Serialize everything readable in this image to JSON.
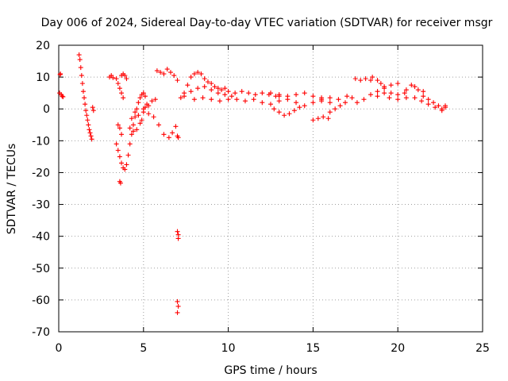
{
  "chart_data": {
    "type": "scatter",
    "title": "Day 006 of 2024, Sidereal Day-to-day VTEC variation (SDTVAR) for receiver msgr",
    "xlabel": "GPS time / hours",
    "ylabel": "SDTVAR / TECUs",
    "xlim": [
      0,
      25
    ],
    "ylim": [
      -70,
      20
    ],
    "xticks": [
      0,
      5,
      10,
      15,
      20,
      25
    ],
    "xtick_labels": [
      "0",
      "5",
      "10",
      "15",
      "20",
      "25"
    ],
    "yticks": [
      20,
      10,
      0,
      -10,
      -20,
      -30,
      -40,
      -50,
      -60,
      -70
    ],
    "ytick_labels": [
      "20",
      "10",
      "0",
      "-10",
      "-20",
      "-30",
      "-40",
      "-50",
      "-60",
      "-70"
    ],
    "grid": true,
    "marker": "+",
    "color": "#ff0000",
    "series": [
      {
        "name": "SDTVAR",
        "points": [
          [
            0.05,
            5.0
          ],
          [
            0.08,
            10.8
          ],
          [
            0.1,
            11.0
          ],
          [
            0.15,
            4.5
          ],
          [
            0.2,
            4.0
          ],
          [
            0.25,
            3.8
          ],
          [
            1.2,
            17.0
          ],
          [
            1.25,
            15.5
          ],
          [
            1.3,
            13.0
          ],
          [
            1.35,
            10.5
          ],
          [
            1.4,
            8.0
          ],
          [
            1.45,
            5.5
          ],
          [
            1.5,
            3.5
          ],
          [
            1.55,
            1.5
          ],
          [
            1.6,
            -0.5
          ],
          [
            1.65,
            -2.0
          ],
          [
            1.7,
            -3.5
          ],
          [
            1.75,
            -5.0
          ],
          [
            1.8,
            -6.5
          ],
          [
            1.85,
            -7.5
          ],
          [
            1.9,
            -8.5
          ],
          [
            1.95,
            -9.5
          ],
          [
            2.0,
            0.5
          ],
          [
            2.05,
            -0.5
          ],
          [
            3.0,
            10.0
          ],
          [
            3.1,
            10.5
          ],
          [
            3.2,
            9.8
          ],
          [
            3.4,
            9.5
          ],
          [
            3.5,
            8.0
          ],
          [
            3.6,
            6.5
          ],
          [
            3.7,
            5.0
          ],
          [
            3.8,
            3.5
          ],
          [
            3.7,
            10.5
          ],
          [
            3.8,
            11.0
          ],
          [
            3.9,
            10.5
          ],
          [
            4.0,
            9.5
          ],
          [
            3.4,
            -11.0
          ],
          [
            3.5,
            -13.0
          ],
          [
            3.6,
            -15.0
          ],
          [
            3.7,
            -17.0
          ],
          [
            3.8,
            -18.5
          ],
          [
            3.9,
            -19.0
          ],
          [
            4.0,
            -17.5
          ],
          [
            4.1,
            -14.5
          ],
          [
            3.5,
            -5.0
          ],
          [
            3.6,
            -6.0
          ],
          [
            3.7,
            -8.0
          ],
          [
            3.6,
            -22.8
          ],
          [
            3.65,
            -23.3
          ],
          [
            4.2,
            -11.0
          ],
          [
            4.3,
            -8.0
          ],
          [
            4.4,
            -5.0
          ],
          [
            4.5,
            -2.5
          ],
          [
            4.6,
            0.0
          ],
          [
            4.7,
            2.0
          ],
          [
            4.8,
            3.5
          ],
          [
            4.9,
            4.5
          ],
          [
            5.0,
            5.0
          ],
          [
            5.1,
            4.0
          ],
          [
            4.3,
            -3.0
          ],
          [
            4.5,
            -1.0
          ],
          [
            4.7,
            -2.0
          ],
          [
            4.9,
            -3.5
          ],
          [
            5.0,
            -1.0
          ],
          [
            5.1,
            0.5
          ],
          [
            5.2,
            1.5
          ],
          [
            5.3,
            1.0
          ],
          [
            4.2,
            -6.0
          ],
          [
            4.4,
            -7.0
          ],
          [
            4.6,
            -6.5
          ],
          [
            4.8,
            -4.5
          ],
          [
            5.0,
            0.0
          ],
          [
            5.3,
            -1.5
          ],
          [
            5.6,
            -2.5
          ],
          [
            5.9,
            -5.0
          ],
          [
            6.2,
            -8.0
          ],
          [
            6.5,
            -9.0
          ],
          [
            6.7,
            -7.5
          ],
          [
            6.9,
            -5.5
          ],
          [
            5.5,
            2.5
          ],
          [
            5.7,
            3.0
          ],
          [
            5.8,
            12.0
          ],
          [
            6.0,
            11.5
          ],
          [
            6.2,
            11.0
          ],
          [
            6.4,
            12.5
          ],
          [
            6.6,
            11.5
          ],
          [
            6.8,
            10.5
          ],
          [
            7.0,
            9.0
          ],
          [
            7.0,
            -8.5
          ],
          [
            7.05,
            -9.0
          ],
          [
            7.0,
            -38.5
          ],
          [
            7.05,
            -39.5
          ],
          [
            7.05,
            -40.7
          ],
          [
            7.0,
            -60.5
          ],
          [
            7.05,
            -62.0
          ],
          [
            7.0,
            -64.0
          ],
          [
            7.2,
            3.5
          ],
          [
            7.4,
            5.0
          ],
          [
            7.6,
            7.5
          ],
          [
            7.8,
            10.0
          ],
          [
            8.0,
            11.0
          ],
          [
            8.2,
            11.5
          ],
          [
            8.4,
            11.0
          ],
          [
            8.6,
            9.5
          ],
          [
            8.8,
            8.5
          ],
          [
            9.0,
            8.0
          ],
          [
            9.2,
            7.0
          ],
          [
            9.4,
            6.5
          ],
          [
            9.6,
            6.0
          ],
          [
            9.8,
            6.5
          ],
          [
            7.4,
            4.0
          ],
          [
            7.8,
            5.5
          ],
          [
            8.2,
            6.5
          ],
          [
            8.6,
            7.0
          ],
          [
            9.0,
            6.0
          ],
          [
            9.4,
            5.0
          ],
          [
            9.8,
            4.5
          ],
          [
            10.2,
            4.0
          ],
          [
            8.0,
            3.0
          ],
          [
            8.5,
            3.5
          ],
          [
            9.0,
            3.0
          ],
          [
            9.5,
            2.5
          ],
          [
            10.0,
            3.0
          ],
          [
            10.0,
            5.5
          ],
          [
            10.4,
            5.0
          ],
          [
            10.8,
            5.5
          ],
          [
            11.2,
            5.0
          ],
          [
            11.6,
            4.5
          ],
          [
            12.0,
            5.0
          ],
          [
            12.4,
            4.5
          ],
          [
            12.8,
            4.0
          ],
          [
            10.5,
            3.0
          ],
          [
            11.0,
            2.5
          ],
          [
            11.5,
            3.0
          ],
          [
            12.0,
            2.0
          ],
          [
            12.5,
            1.5
          ],
          [
            13.0,
            2.5
          ],
          [
            12.5,
            5.0
          ],
          [
            13.0,
            4.0
          ],
          [
            13.5,
            3.0
          ],
          [
            14.0,
            2.0
          ],
          [
            14.5,
            1.0
          ],
          [
            15.0,
            2.0
          ],
          [
            15.5,
            3.0
          ],
          [
            16.0,
            3.5
          ],
          [
            12.7,
            0.0
          ],
          [
            13.0,
            -1.0
          ],
          [
            13.3,
            -2.0
          ],
          [
            13.6,
            -1.5
          ],
          [
            13.9,
            -0.5
          ],
          [
            14.2,
            0.5
          ],
          [
            13.0,
            4.5
          ],
          [
            13.5,
            4.0
          ],
          [
            14.0,
            4.5
          ],
          [
            14.5,
            5.0
          ],
          [
            15.0,
            4.0
          ],
          [
            15.5,
            3.5
          ],
          [
            15.0,
            -3.5
          ],
          [
            15.3,
            -3.0
          ],
          [
            15.6,
            -2.5
          ],
          [
            15.9,
            -3.0
          ],
          [
            15.5,
            2.5
          ],
          [
            16.0,
            2.0
          ],
          [
            16.5,
            3.0
          ],
          [
            17.0,
            4.0
          ],
          [
            17.3,
            3.5
          ],
          [
            16.0,
            -1.0
          ],
          [
            16.3,
            0.0
          ],
          [
            16.6,
            1.0
          ],
          [
            16.9,
            2.0
          ],
          [
            17.5,
            9.5
          ],
          [
            17.8,
            9.0
          ],
          [
            18.1,
            9.5
          ],
          [
            18.4,
            9.0
          ],
          [
            17.6,
            2.0
          ],
          [
            18.0,
            3.0
          ],
          [
            18.4,
            4.5
          ],
          [
            18.8,
            5.5
          ],
          [
            19.2,
            6.5
          ],
          [
            19.6,
            7.5
          ],
          [
            20.0,
            8.0
          ],
          [
            18.5,
            10.0
          ],
          [
            18.8,
            9.0
          ],
          [
            19.0,
            8.0
          ],
          [
            19.2,
            7.0
          ],
          [
            18.8,
            4.0
          ],
          [
            19.2,
            5.0
          ],
          [
            19.6,
            5.0
          ],
          [
            20.0,
            4.5
          ],
          [
            20.4,
            5.0
          ],
          [
            19.5,
            3.5
          ],
          [
            20.0,
            3.0
          ],
          [
            20.5,
            3.5
          ],
          [
            20.5,
            6.0
          ],
          [
            20.8,
            7.5
          ],
          [
            21.0,
            7.0
          ],
          [
            21.2,
            6.0
          ],
          [
            21.5,
            5.5
          ],
          [
            21.5,
            4.0
          ],
          [
            21.8,
            3.0
          ],
          [
            22.1,
            2.0
          ],
          [
            22.4,
            1.0
          ],
          [
            22.6,
            0.0
          ],
          [
            22.8,
            1.0
          ],
          [
            21.0,
            3.5
          ],
          [
            21.4,
            2.5
          ],
          [
            21.8,
            1.5
          ],
          [
            22.2,
            0.5
          ],
          [
            22.6,
            -0.5
          ],
          [
            22.8,
            0.5
          ]
        ]
      }
    ]
  }
}
